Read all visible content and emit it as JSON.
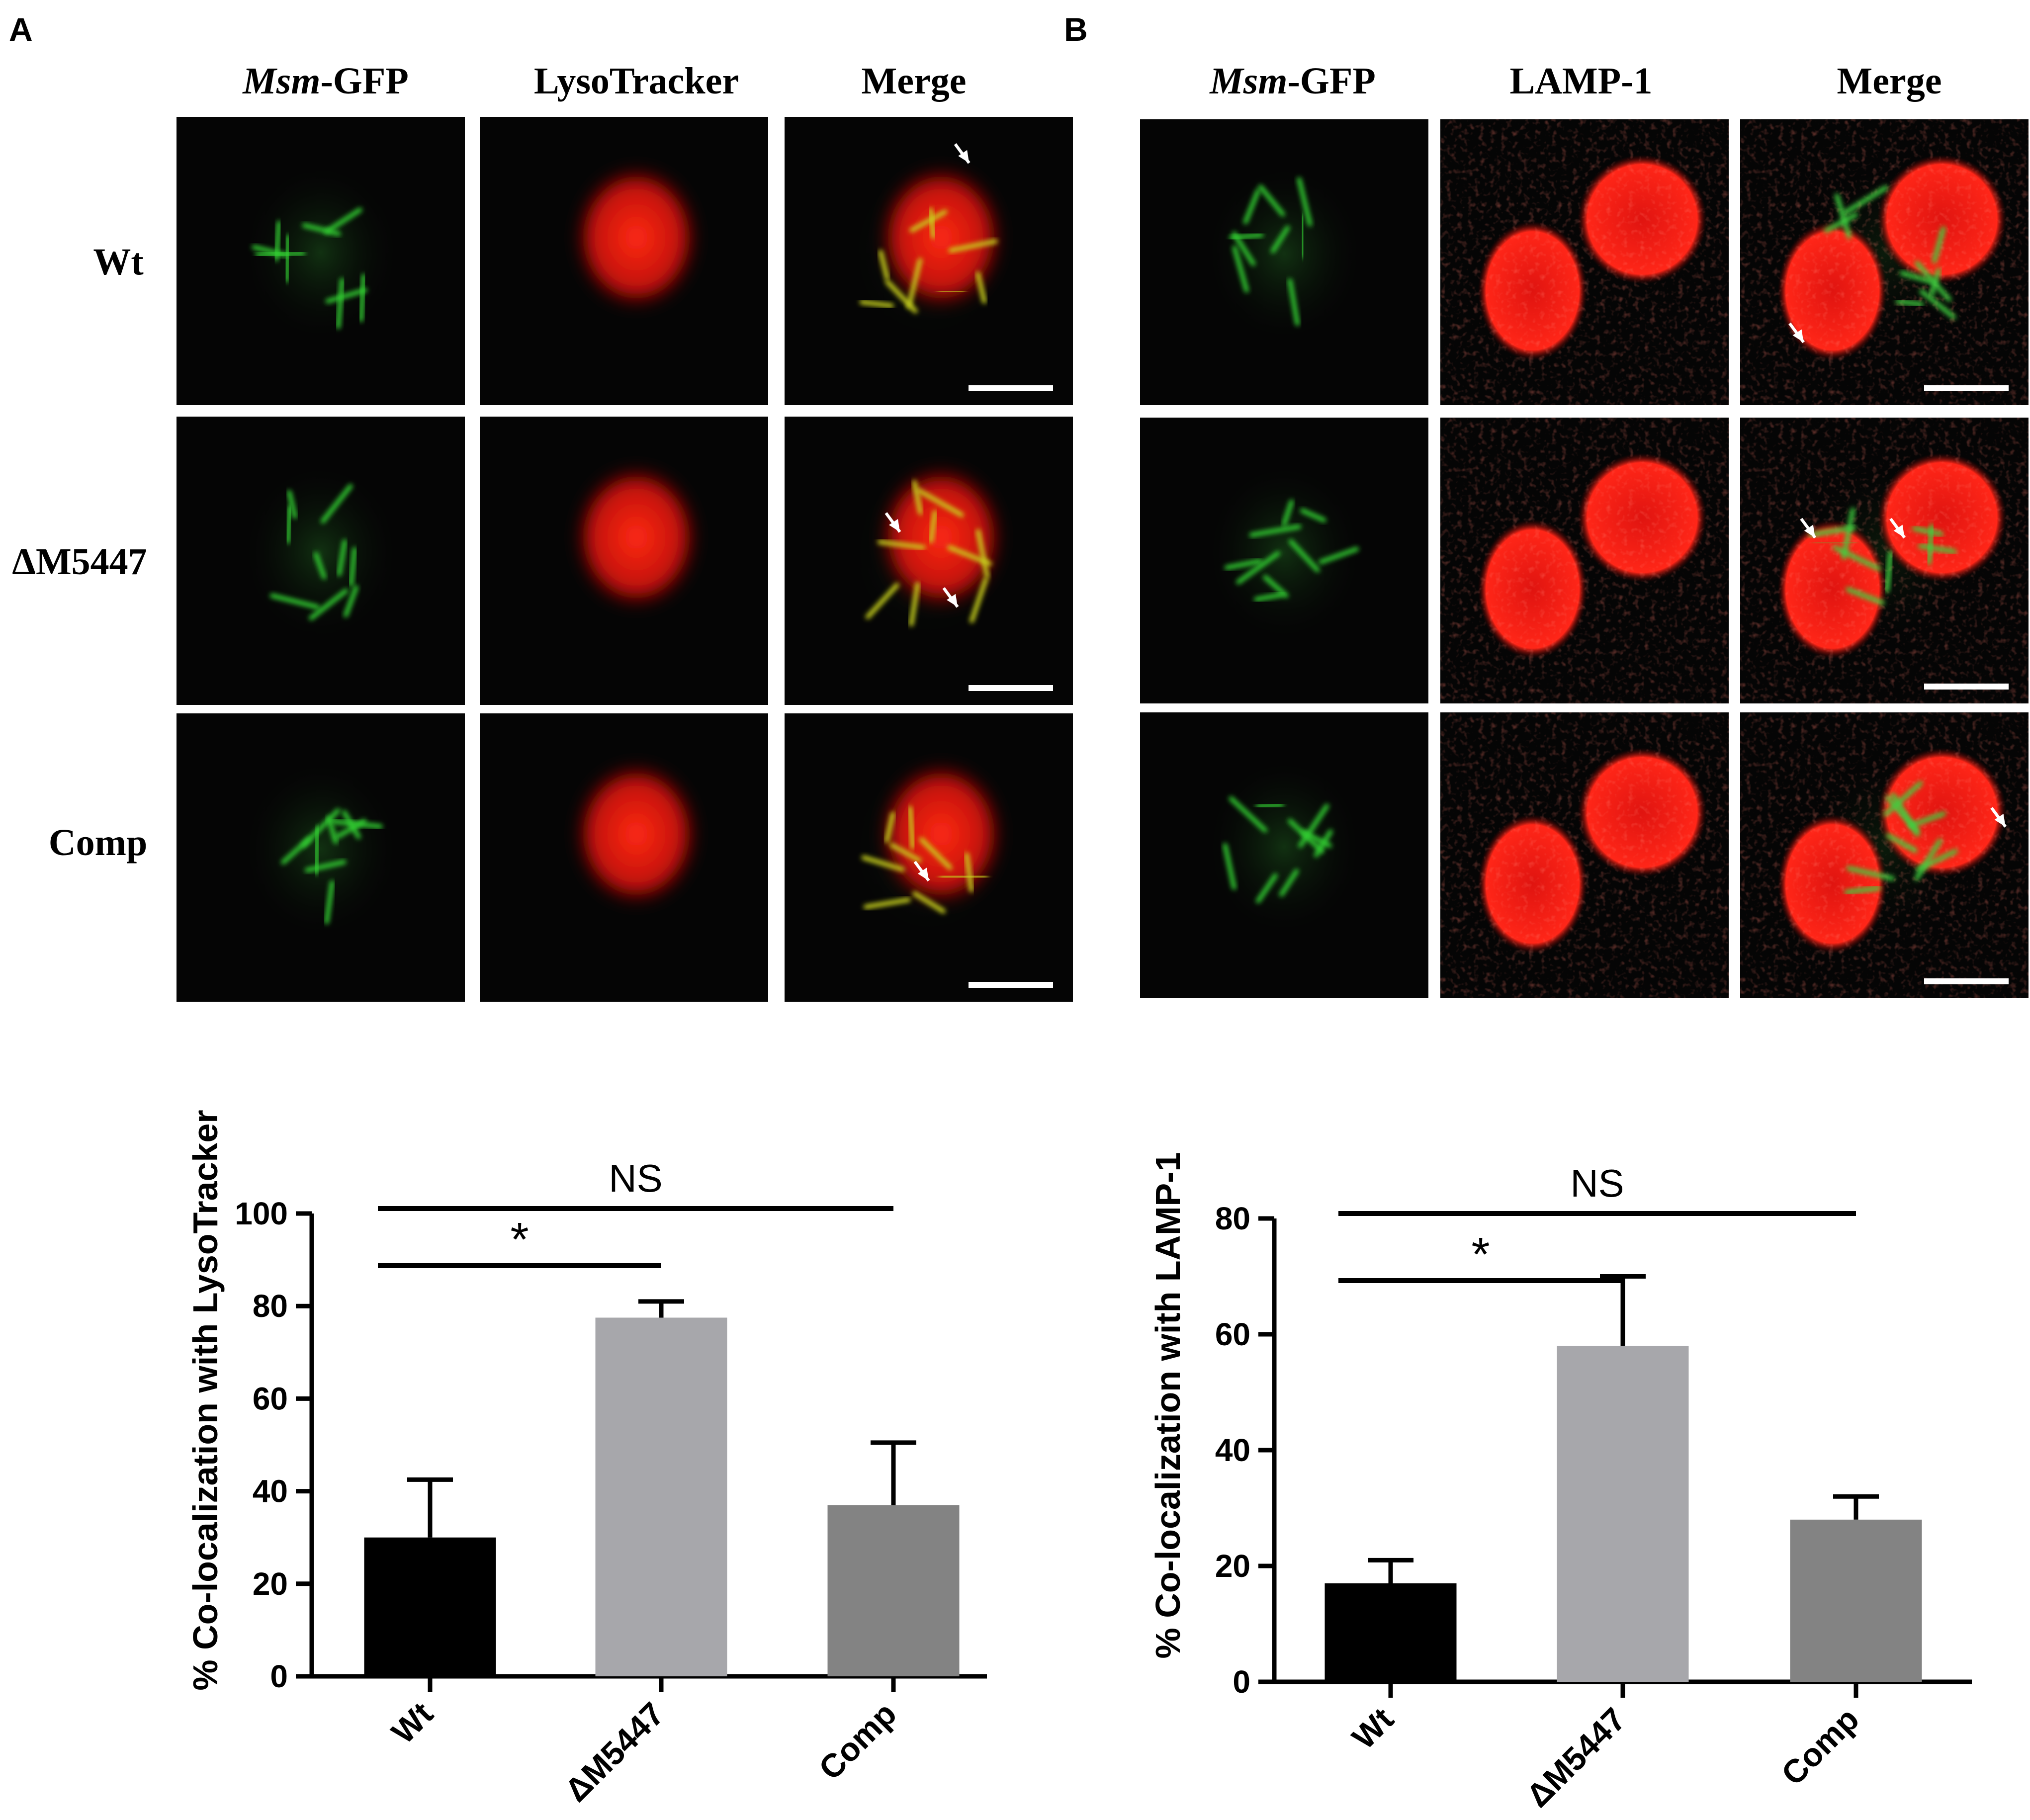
{
  "panel_letters": [
    "A",
    "B"
  ],
  "panel_A": {
    "columns": [
      {
        "italic": "Msm",
        "rest": "-GFP"
      },
      {
        "italic": "",
        "rest": "LysoTracker"
      },
      {
        "italic": "",
        "rest": "Merge"
      }
    ],
    "rows": [
      "Wt",
      "ΔM5447",
      "Comp"
    ]
  },
  "panel_B": {
    "columns": [
      {
        "italic": "Msm",
        "rest": "-GFP"
      },
      {
        "italic": "",
        "rest": "LAMP-1"
      },
      {
        "italic": "",
        "rest": "Merge"
      }
    ]
  },
  "chart_data": [
    {
      "type": "bar",
      "categories": [
        "Wt",
        "ΔM5447",
        "Comp"
      ],
      "values": [
        30,
        77.5,
        37
      ],
      "errors": [
        12.5,
        3.5,
        13.5
      ],
      "colors": [
        "#000000",
        "#a7a7ab",
        "#838383"
      ],
      "ylabel": "% Co-localization with LysoTracker",
      "ylim": [
        0,
        100
      ],
      "yticks": [
        0,
        20,
        40,
        60,
        80,
        100
      ],
      "annotations": [
        {
          "label": "*",
          "from": "Wt",
          "to": "ΔM5447"
        },
        {
          "label": "NS",
          "from": "Wt",
          "to": "Comp"
        }
      ]
    },
    {
      "type": "bar",
      "categories": [
        "Wt",
        "ΔM5447",
        "Comp"
      ],
      "values": [
        17,
        58,
        28
      ],
      "errors": [
        4,
        12,
        4
      ],
      "colors": [
        "#000000",
        "#a7a7ab",
        "#838383"
      ],
      "ylabel": "% Co-localization with LAMP-1",
      "ylim": [
        0,
        80
      ],
      "yticks": [
        0,
        20,
        40,
        60,
        80
      ],
      "annotations": [
        {
          "label": "*",
          "from": "Wt",
          "to": "ΔM5447"
        },
        {
          "label": "NS",
          "from": "Wt",
          "to": "Comp"
        }
      ]
    }
  ]
}
